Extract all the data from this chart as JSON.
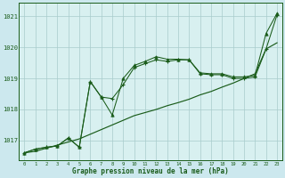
{
  "background_color": "#cce8ee",
  "plot_bg_color": "#d8f0f0",
  "grid_color": "#a8cccc",
  "line_color": "#1a5c1a",
  "yticks": [
    1017,
    1018,
    1019,
    1020,
    1021
  ],
  "ylim": [
    1016.35,
    1021.45
  ],
  "xlim": [
    -0.5,
    23.5
  ],
  "xlabel": "Graphe pression niveau de la mer (hPa)",
  "series_linear": [
    1016.6,
    1016.65,
    1016.75,
    1016.85,
    1016.95,
    1017.05,
    1017.2,
    1017.35,
    1017.5,
    1017.65,
    1017.8,
    1017.9,
    1018.0,
    1018.12,
    1018.22,
    1018.33,
    1018.47,
    1018.58,
    1018.72,
    1018.85,
    1019.0,
    1019.15,
    1019.95,
    1020.15
  ],
  "series_cross": [
    1016.6,
    1016.72,
    1016.78,
    1016.82,
    1017.08,
    1016.78,
    1018.9,
    1018.4,
    1018.35,
    1018.8,
    1019.35,
    1019.48,
    1019.6,
    1019.55,
    1019.6,
    1019.6,
    1019.15,
    1019.12,
    1019.12,
    1019.0,
    1019.0,
    1019.05,
    1019.95,
    1021.05
  ],
  "series_tri": [
    1016.6,
    1016.72,
    1016.78,
    1016.82,
    1017.08,
    1016.78,
    1018.9,
    1018.4,
    1017.82,
    1019.0,
    1019.42,
    1019.55,
    1019.7,
    1019.62,
    1019.62,
    1019.6,
    1019.18,
    1019.15,
    1019.15,
    1019.05,
    1019.05,
    1019.1,
    1020.45,
    1021.1
  ]
}
